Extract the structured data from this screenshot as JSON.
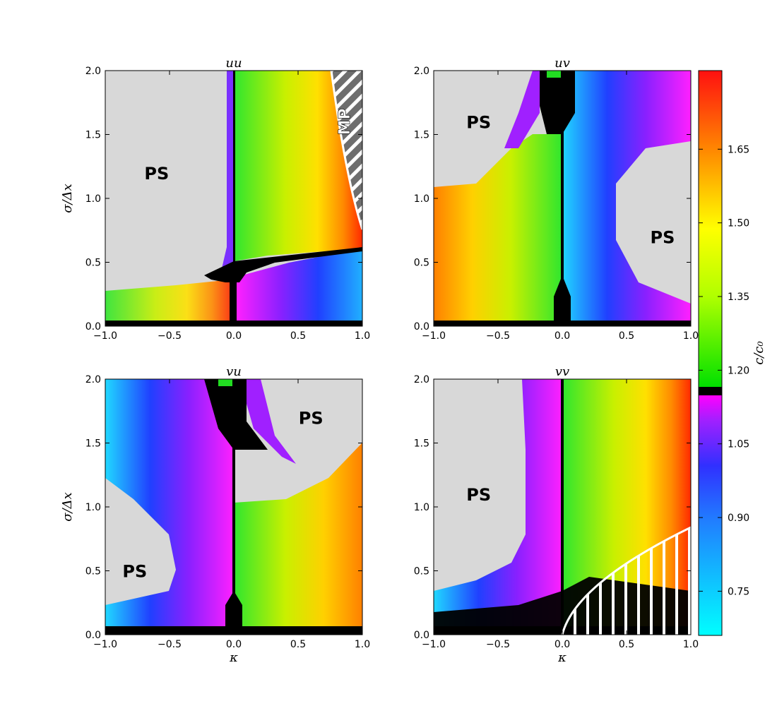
{
  "chart_data": {
    "type": "heatmap",
    "panels": [
      {
        "id": "uu",
        "title": "uu",
        "xlim": [
          -1.0,
          1.0
        ],
        "ylim": [
          0.0,
          2.0
        ],
        "xticks": [
          "−1.0",
          "−0.5",
          "0.0",
          "0.5",
          "1.0"
        ],
        "yticks": [
          "0.0",
          "0.5",
          "1.0",
          "1.5",
          "2.0"
        ],
        "xlabel": "",
        "ylabel": "σ/Δx",
        "region_labels": [
          {
            "text": "PS",
            "kappa": -0.6,
            "sigma": 1.2
          },
          {
            "text": "MP",
            "kappa": 0.9,
            "sigma": 1.6
          }
        ]
      },
      {
        "id": "uv",
        "title": "uv",
        "xlim": [
          -1.0,
          1.0
        ],
        "ylim": [
          0.0,
          2.0
        ],
        "xticks": [
          "−1.0",
          "−0.5",
          "0.0",
          "0.5",
          "1.0"
        ],
        "yticks": [
          "0.0",
          "0.5",
          "1.0",
          "1.5",
          "2.0"
        ],
        "xlabel": "",
        "ylabel": "",
        "region_labels": [
          {
            "text": "PS",
            "kappa": -0.65,
            "sigma": 1.6
          },
          {
            "text": "PS",
            "kappa": 0.78,
            "sigma": 0.7
          }
        ]
      },
      {
        "id": "vu",
        "title": "vu",
        "xlim": [
          -1.0,
          1.0
        ],
        "ylim": [
          0.0,
          2.0
        ],
        "xticks": [
          "−1.0",
          "−0.5",
          "0.0",
          "0.5",
          "1.0"
        ],
        "yticks": [
          "0.0",
          "0.5",
          "1.0",
          "1.5",
          "2.0"
        ],
        "xlabel": "κ",
        "ylabel": "σ/Δx",
        "region_labels": [
          {
            "text": "PS",
            "kappa": 0.6,
            "sigma": 1.7
          },
          {
            "text": "PS",
            "kappa": -0.77,
            "sigma": 0.5
          }
        ]
      },
      {
        "id": "vv",
        "title": "vv",
        "xlim": [
          -1.0,
          1.0
        ],
        "ylim": [
          0.0,
          2.0
        ],
        "xticks": [
          "−1.0",
          "−0.5",
          "0.0",
          "0.5",
          "1.0"
        ],
        "yticks": [
          "0.0",
          "0.5",
          "1.0",
          "1.5",
          "2.0"
        ],
        "xlabel": "κ",
        "ylabel": "",
        "region_labels": [
          {
            "text": "PS",
            "kappa": -0.65,
            "sigma": 1.1
          }
        ]
      }
    ],
    "colorbar": {
      "label": "c/c₀",
      "range": [
        0.66,
        1.81
      ],
      "ticks": [
        "0.75",
        "0.90",
        "1.05",
        "1.20",
        "1.35",
        "1.50",
        "1.65"
      ],
      "tick_values": [
        0.75,
        0.9,
        1.05,
        1.2,
        1.35,
        1.5,
        1.65
      ],
      "split_value": 1.0
    },
    "colors": {
      "unstable_gray": "#d8d8d8",
      "boundary_black": "#000000",
      "hatch_gray": "#6e6e6e"
    }
  }
}
